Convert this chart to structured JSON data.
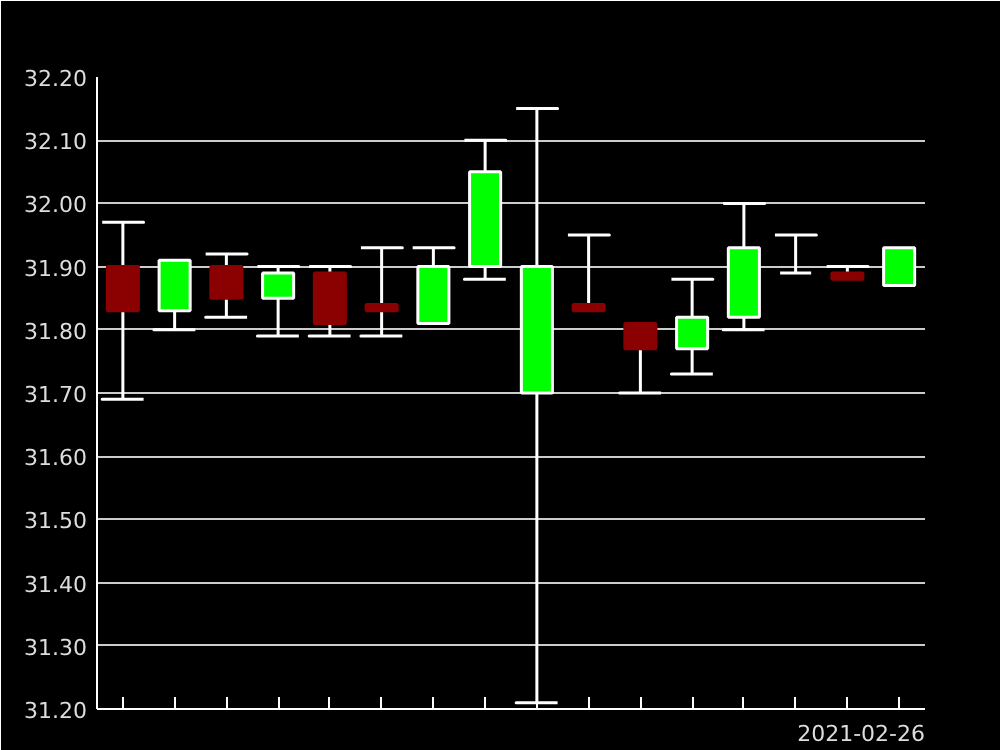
{
  "chart_data": {
    "type": "candlestick",
    "xlabel": "2021-02-26",
    "categories": [
      null,
      null,
      null,
      null,
      null,
      null,
      null,
      null,
      null,
      null,
      null,
      null,
      null,
      null,
      null,
      null
    ],
    "ohlc": [
      [
        31.9,
        31.97,
        31.69,
        31.83
      ],
      [
        31.83,
        31.91,
        31.8,
        31.91
      ],
      [
        31.9,
        31.92,
        31.82,
        31.85
      ],
      [
        31.85,
        31.9,
        31.79,
        31.89
      ],
      [
        31.89,
        31.9,
        31.79,
        31.81
      ],
      [
        31.84,
        31.93,
        31.79,
        31.83
      ],
      [
        31.81,
        31.93,
        31.81,
        31.9
      ],
      [
        31.9,
        32.1,
        31.88,
        32.05
      ],
      [
        31.7,
        32.15,
        31.21,
        31.9
      ],
      [
        31.84,
        31.95,
        31.83,
        31.83
      ],
      [
        31.81,
        31.81,
        31.7,
        31.77
      ],
      [
        31.77,
        31.88,
        31.73,
        31.82
      ],
      [
        31.82,
        32.0,
        31.8,
        31.93
      ],
      [
        31.89,
        31.95,
        31.89,
        31.89
      ],
      [
        31.89,
        31.9,
        31.88,
        31.88
      ],
      [
        31.87,
        31.93,
        31.87,
        31.93
      ]
    ],
    "colors": [
      "#8b0000",
      "#00ff00",
      "#8b0000",
      "#00ff00",
      "#8b0000",
      "#8b0000",
      "#00ff00",
      "#00ff00",
      "#00ff00",
      "#8b0000",
      "#8b0000",
      "#00ff00",
      "#00ff00",
      "#ffffff",
      "#8b0000",
      "#00ff00"
    ],
    "ylim": [
      31.2,
      32.2
    ],
    "yticks": [
      {
        "value": 31.2,
        "label": "31.20"
      },
      {
        "value": 31.3,
        "label": "31.30"
      },
      {
        "value": 31.4,
        "label": "31.40"
      },
      {
        "value": 31.5,
        "label": "31.50"
      },
      {
        "value": 31.6,
        "label": "31.60"
      },
      {
        "value": 31.7,
        "label": "31.70"
      },
      {
        "value": 31.8,
        "label": "31.80"
      },
      {
        "value": 31.9,
        "label": "31.90"
      },
      {
        "value": 32.0,
        "label": "32.00"
      },
      {
        "value": 32.1,
        "label": "32.10"
      },
      {
        "value": 32.2,
        "label": "32.20"
      }
    ],
    "grid": "y",
    "tick_labels": "y"
  }
}
